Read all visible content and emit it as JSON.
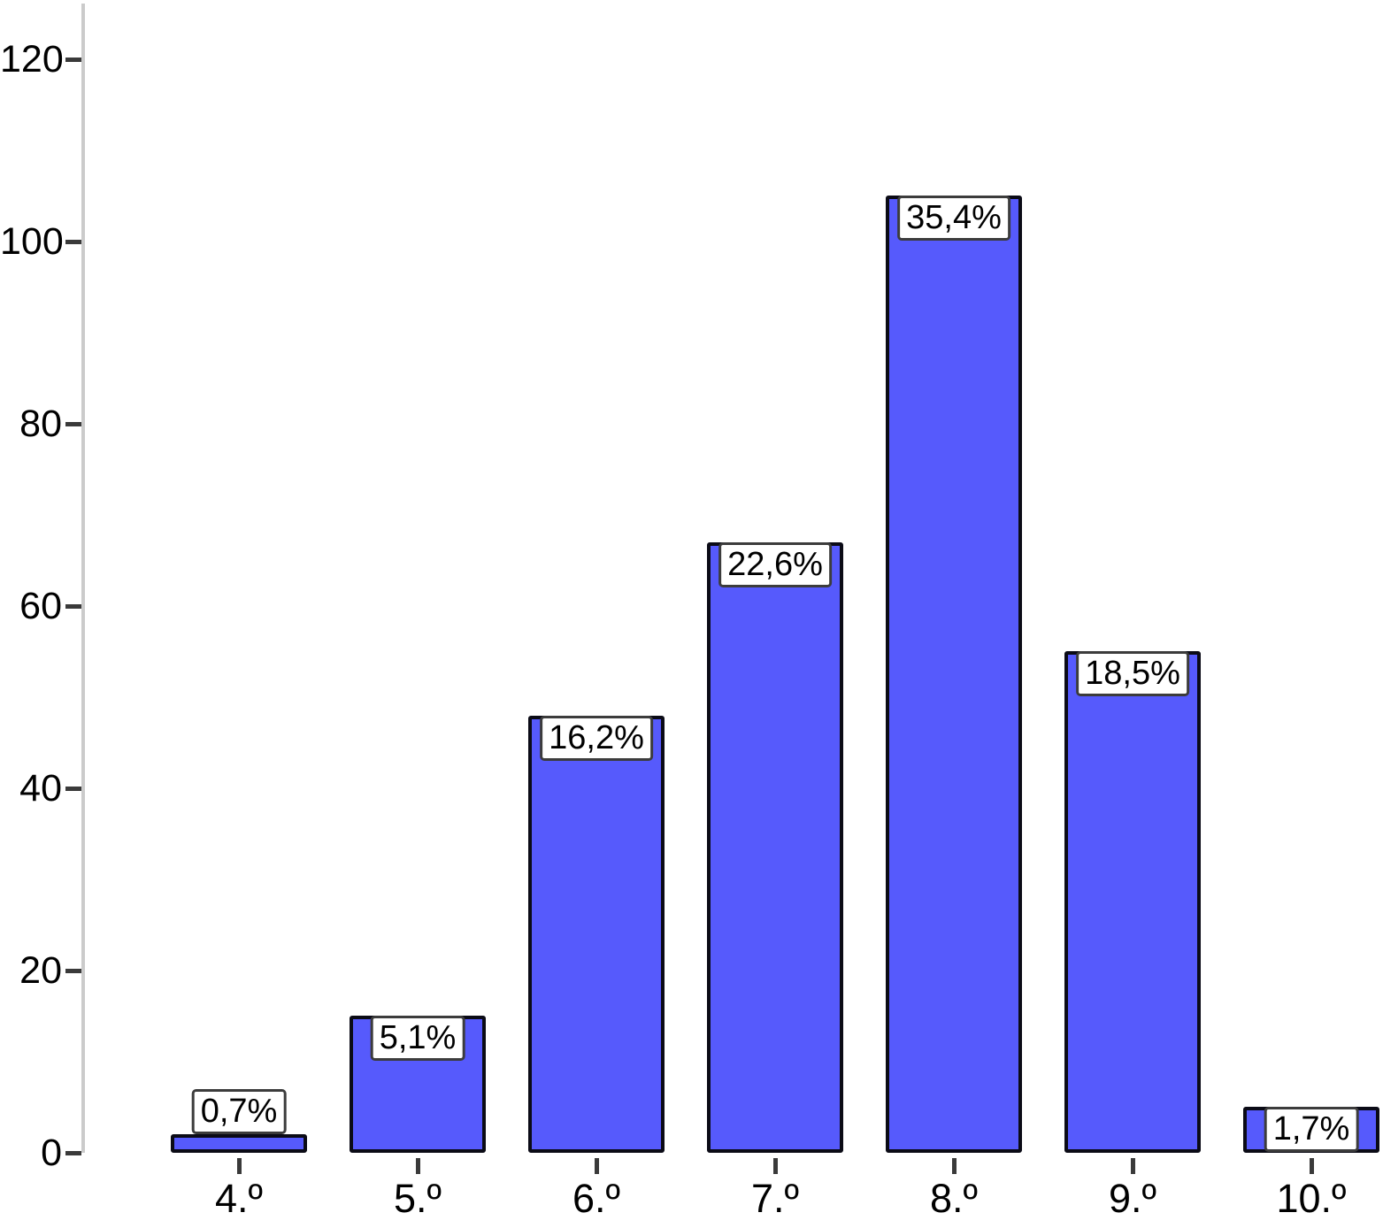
{
  "chart_data": {
    "type": "bar",
    "title": "",
    "xlabel": "",
    "ylabel": "",
    "categories": [
      "4.º",
      "5.º",
      "6.º",
      "7.º",
      "8.º",
      "9.º",
      "10.º"
    ],
    "values": [
      2,
      15,
      48,
      67,
      105,
      55,
      5
    ],
    "bar_labels": [
      "0,7%",
      "5,1%",
      "16,2%",
      "22,6%",
      "35,4%",
      "18,5%",
      "1,7%"
    ],
    "bar_label_positions": [
      "above",
      "inside",
      "inside",
      "inside",
      "inside",
      "inside",
      "inside"
    ],
    "ylim": [
      0,
      120
    ],
    "yticks": [
      0,
      20,
      40,
      60,
      80,
      100,
      120
    ],
    "grid": false,
    "legend": false,
    "x_axis_line": false,
    "colors": {
      "bar_fill": "#565AFC",
      "bar_border": "#0b0b16",
      "label_box_bg": "#ffffff",
      "label_box_border": "#3c3c3c",
      "axis_line": "#cbcbcb",
      "tick": "#3a3a3a",
      "text": "#000000",
      "background": "#ffffff"
    }
  }
}
